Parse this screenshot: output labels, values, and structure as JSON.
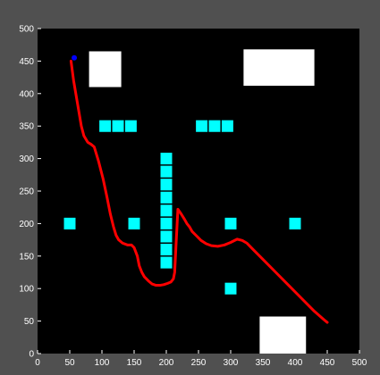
{
  "colors": {
    "figure_background": "#505050",
    "plot_background": "#000000",
    "path": "#ff0000",
    "start_marker": "#0000ff",
    "obstacle_large": "#ffffff",
    "obstacle_small": "#00ffff",
    "tick_text": "#ffffff"
  },
  "chart_data": {
    "type": "scatter",
    "title": "",
    "xlabel": "",
    "ylabel": "",
    "xlim": [
      0,
      500
    ],
    "ylim": [
      0,
      500
    ],
    "grid": false,
    "xticks": [
      0,
      50,
      100,
      150,
      200,
      250,
      300,
      350,
      400,
      450,
      500
    ],
    "yticks": [
      0,
      50,
      100,
      150,
      200,
      250,
      300,
      350,
      400,
      450,
      500
    ],
    "path": {
      "color": "#ff0000",
      "x": [
        52,
        56,
        62,
        68,
        72,
        78,
        83,
        88,
        95,
        102,
        108,
        113,
        118,
        122,
        126,
        132,
        140,
        146,
        150,
        155,
        158,
        162,
        166,
        172,
        178,
        184,
        190,
        196,
        202,
        207,
        211,
        213,
        215,
        218,
        223,
        228,
        232,
        236,
        240,
        246,
        254,
        262,
        270,
        280,
        290,
        300,
        310,
        318,
        325,
        335,
        350,
        370,
        390,
        410,
        430,
        445,
        450
      ],
      "y": [
        450,
        420,
        385,
        350,
        335,
        325,
        322,
        318,
        295,
        268,
        240,
        215,
        195,
        182,
        175,
        170,
        167,
        167,
        163,
        150,
        135,
        125,
        118,
        112,
        107,
        105,
        105,
        106,
        108,
        110,
        115,
        125,
        165,
        222,
        215,
        207,
        200,
        195,
        188,
        182,
        174,
        169,
        166,
        165,
        167,
        171,
        176,
        174,
        170,
        160,
        145,
        125,
        105,
        85,
        65,
        52,
        48
      ]
    },
    "start": {
      "x": 57,
      "y": 455,
      "color": "#0000ff"
    },
    "obstacles_large": [
      {
        "x": 80,
        "y": 410,
        "w": 50,
        "h": 55
      },
      {
        "x": 320,
        "y": 412,
        "w": 110,
        "h": 56
      },
      {
        "x": 345,
        "y": -5,
        "w": 72,
        "h": 62
      }
    ],
    "obstacles_small": [
      {
        "x": 50,
        "y": 200
      },
      {
        "x": 105,
        "y": 350
      },
      {
        "x": 125,
        "y": 350
      },
      {
        "x": 145,
        "y": 350
      },
      {
        "x": 150,
        "y": 200
      },
      {
        "x": 200,
        "y": 300
      },
      {
        "x": 200,
        "y": 280
      },
      {
        "x": 200,
        "y": 260
      },
      {
        "x": 200,
        "y": 240
      },
      {
        "x": 200,
        "y": 220
      },
      {
        "x": 200,
        "y": 200
      },
      {
        "x": 200,
        "y": 180
      },
      {
        "x": 200,
        "y": 160
      },
      {
        "x": 200,
        "y": 140
      },
      {
        "x": 255,
        "y": 350
      },
      {
        "x": 275,
        "y": 350
      },
      {
        "x": 295,
        "y": 350
      },
      {
        "x": 300,
        "y": 200
      },
      {
        "x": 300,
        "y": 100
      },
      {
        "x": 400,
        "y": 200
      }
    ],
    "small_obstacle_size": 18
  }
}
